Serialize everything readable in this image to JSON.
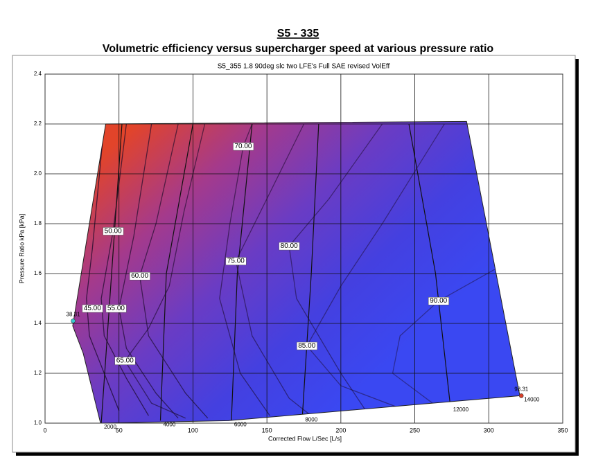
{
  "title": "S5 - 335",
  "subtitle": "Volumetric efficiency versus supercharger speed at various pressure ratio",
  "chart_data": {
    "type": "contour",
    "title": "S5_355 1.8 90deg slc  two LFE's Full SAE revised VolEff",
    "x_label": "Corrected Flow L/Sec [L/s]",
    "y_label": "Pressure Ratio kPa [kPa]",
    "xlim": [
      0,
      350
    ],
    "xticks": [
      0,
      50,
      100,
      150,
      200,
      250,
      300,
      350
    ],
    "ylim": [
      1,
      2.4
    ],
    "yticks": [
      {
        "value": 1,
        "label": "1.0"
      },
      1.2,
      1.4,
      1.6,
      1.8,
      {
        "value": 2,
        "label": "2.0"
      },
      2.2,
      2.4
    ],
    "grid": true,
    "colorscale": [
      "#e2442a",
      "#a43a8c",
      "#6a3cc4",
      "#4440e0",
      "#3a48f2"
    ],
    "boundary": {
      "x": [
        41,
        285,
        321,
        124,
        37.5,
        25.8,
        18.7
      ],
      "y": [
        2.2,
        2.21,
        1.11,
        1.01,
        1.0,
        1.28,
        1.39
      ]
    },
    "contours": [
      {
        "level": 45,
        "label": "45.00",
        "label_x": 32,
        "label_y": 1.46,
        "x": [
          40,
          32,
          28,
          30,
          40,
          50
        ],
        "y": [
          2.2,
          1.7,
          1.5,
          1.35,
          1.2,
          1.05
        ]
      },
      {
        "level": 50,
        "label": "50.00",
        "label_x": 46,
        "label_y": 1.77,
        "x": [
          55,
          46,
          38,
          40,
          55,
          70
        ],
        "y": [
          2.2,
          1.77,
          1.5,
          1.35,
          1.18,
          1.03
        ]
      },
      {
        "level": 55,
        "label": "55.00",
        "label_x": 48,
        "label_y": 1.46,
        "x": [
          72,
          60,
          50,
          55,
          75,
          90
        ],
        "y": [
          2.2,
          1.75,
          1.46,
          1.3,
          1.12,
          1.02
        ]
      },
      {
        "level": 60,
        "label": "60.00",
        "label_x": 64,
        "label_y": 1.59,
        "x": [
          90,
          75,
          64,
          70,
          95,
          110
        ],
        "y": [
          2.2,
          1.8,
          1.59,
          1.35,
          1.12,
          1.02
        ]
      },
      {
        "level": 65,
        "label": "65.00",
        "label_x": 54,
        "label_y": 1.25,
        "x": [
          108,
          94,
          84,
          70,
          54,
          72,
          95
        ],
        "y": [
          2.2,
          1.85,
          1.55,
          1.38,
          1.25,
          1.08,
          1.02
        ]
      },
      {
        "level": 70,
        "label": "70.00",
        "label_x": 134,
        "label_y": 2.11,
        "x": [
          140,
          134,
          125,
          118,
          132,
          152
        ],
        "y": [
          2.2,
          2.11,
          1.8,
          1.5,
          1.2,
          1.03
        ]
      },
      {
        "level": 75,
        "label": "75.00",
        "label_x": 129,
        "label_y": 1.65,
        "x": [
          175,
          150,
          129,
          140,
          165,
          182
        ],
        "y": [
          2.2,
          1.9,
          1.65,
          1.35,
          1.1,
          1.02
        ]
      },
      {
        "level": 80,
        "label": "80.00",
        "label_x": 165,
        "label_y": 1.71,
        "x": [
          228,
          192,
          165,
          170,
          200,
          218
        ],
        "y": [
          2.2,
          1.9,
          1.71,
          1.5,
          1.2,
          1.04
        ]
      },
      {
        "level": 85,
        "label": "85.00",
        "label_x": 177,
        "label_y": 1.31,
        "x": [
          270,
          228,
          200,
          177,
          200,
          240
        ],
        "y": [
          2.2,
          1.8,
          1.55,
          1.31,
          1.15,
          1.06
        ]
      },
      {
        "level": 90,
        "label": "90.00",
        "label_x": 266,
        "label_y": 1.49,
        "x": [
          305,
          266,
          240,
          235,
          262
        ],
        "y": [
          1.62,
          1.49,
          1.35,
          1.2,
          1.08
        ]
      }
    ],
    "speed_lines": [
      {
        "speed": 2000,
        "x": [
          52,
          45,
          38
        ],
        "y": [
          2.2,
          1.6,
          1.0
        ]
      },
      {
        "speed": 4000,
        "x": [
          100,
          82,
          78
        ],
        "y": [
          2.2,
          1.6,
          1.01
        ]
      },
      {
        "speed": 6000,
        "x": [
          140,
          130,
          126
        ],
        "y": [
          2.2,
          1.6,
          1.01
        ]
      },
      {
        "speed": 8000,
        "x": [
          185,
          180,
          174
        ],
        "y": [
          2.2,
          1.6,
          1.03
        ]
      },
      {
        "speed": 12000,
        "x": [
          246,
          264,
          274
        ],
        "y": [
          2.2,
          1.6,
          1.07
        ]
      },
      {
        "speed": 14000,
        "x": [
          286,
          322
        ],
        "y": [
          2.21,
          1.11
        ]
      }
    ],
    "markers": [
      {
        "value": 38.31,
        "x": 19,
        "y": 1.41,
        "color": "#3ac8d0"
      },
      {
        "value": 98.31,
        "x": 322,
        "y": 1.11,
        "color": "#d8402a"
      }
    ]
  }
}
